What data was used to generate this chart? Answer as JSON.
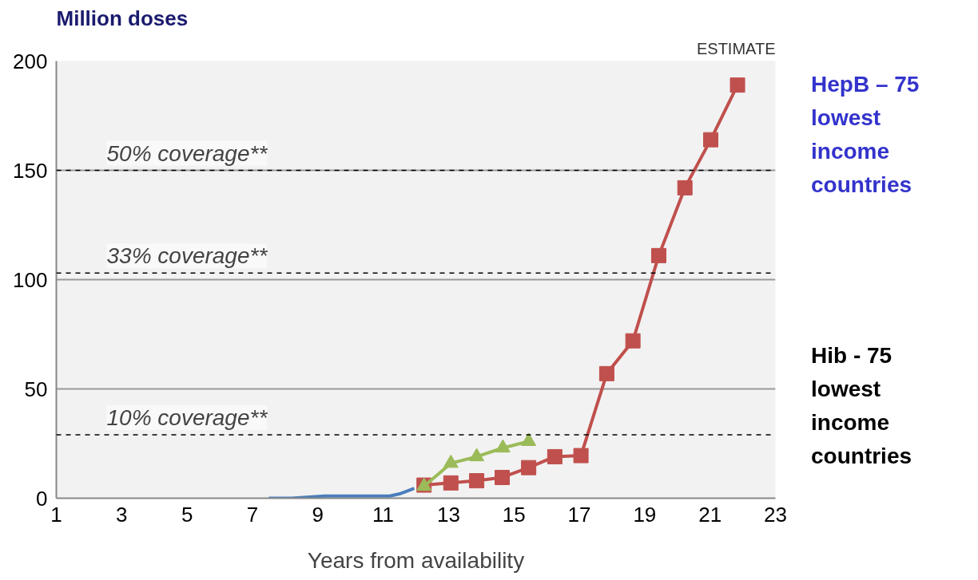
{
  "chart_data": {
    "type": "line",
    "xlabel": "Years from availability",
    "ylabel": "Million doses",
    "xlim": [
      1,
      23
    ],
    "xticks": [
      1,
      3,
      5,
      7,
      9,
      11,
      13,
      15,
      17,
      19,
      21,
      23
    ],
    "ylim": [
      0,
      200
    ],
    "yticks": [
      0,
      50,
      100,
      150,
      200
    ],
    "grid": "y",
    "line_style": "solid",
    "series": [
      {
        "color": "#4a7ebb",
        "marker": "none",
        "x": [
          7.5,
          8.2,
          9.2,
          10.2,
          11.2,
          11.5,
          11.95
        ],
        "values": [
          0,
          0,
          1,
          1,
          1,
          2,
          4.5
        ]
      },
      {
        "color": "#c0504d",
        "marker": "square",
        "x": [
          12.25,
          13.07,
          13.86,
          14.64,
          15.45,
          16.25,
          17.05,
          17.84,
          18.64,
          19.43,
          20.23,
          21.02,
          21.84
        ],
        "values": [
          6,
          7,
          8,
          9.5,
          14,
          19,
          19.5,
          57,
          72,
          111,
          142,
          164,
          189
        ]
      },
      {
        "color": "#9bbb59",
        "marker": "triangle",
        "x": [
          12.25,
          13.07,
          13.86,
          14.66,
          15.45
        ],
        "values": [
          5.5,
          16,
          19,
          23,
          26
        ]
      }
    ],
    "ref_lines": [
      {
        "axis": "y",
        "value": 150,
        "label": "50% coverage**",
        "color": "#000000",
        "line_style": "dashed"
      },
      {
        "axis": "y",
        "value": 103,
        "label": "33% coverage**",
        "color": "#000000",
        "line_style": "dashed"
      },
      {
        "axis": "y",
        "value": 29,
        "label": "10% coverage**",
        "color": "#000000",
        "line_style": "dashed"
      }
    ],
    "annotations": [
      "ESTIMATE",
      "HepB – 75 lowest income countries",
      "Hib - 75 lowest income countries"
    ]
  }
}
